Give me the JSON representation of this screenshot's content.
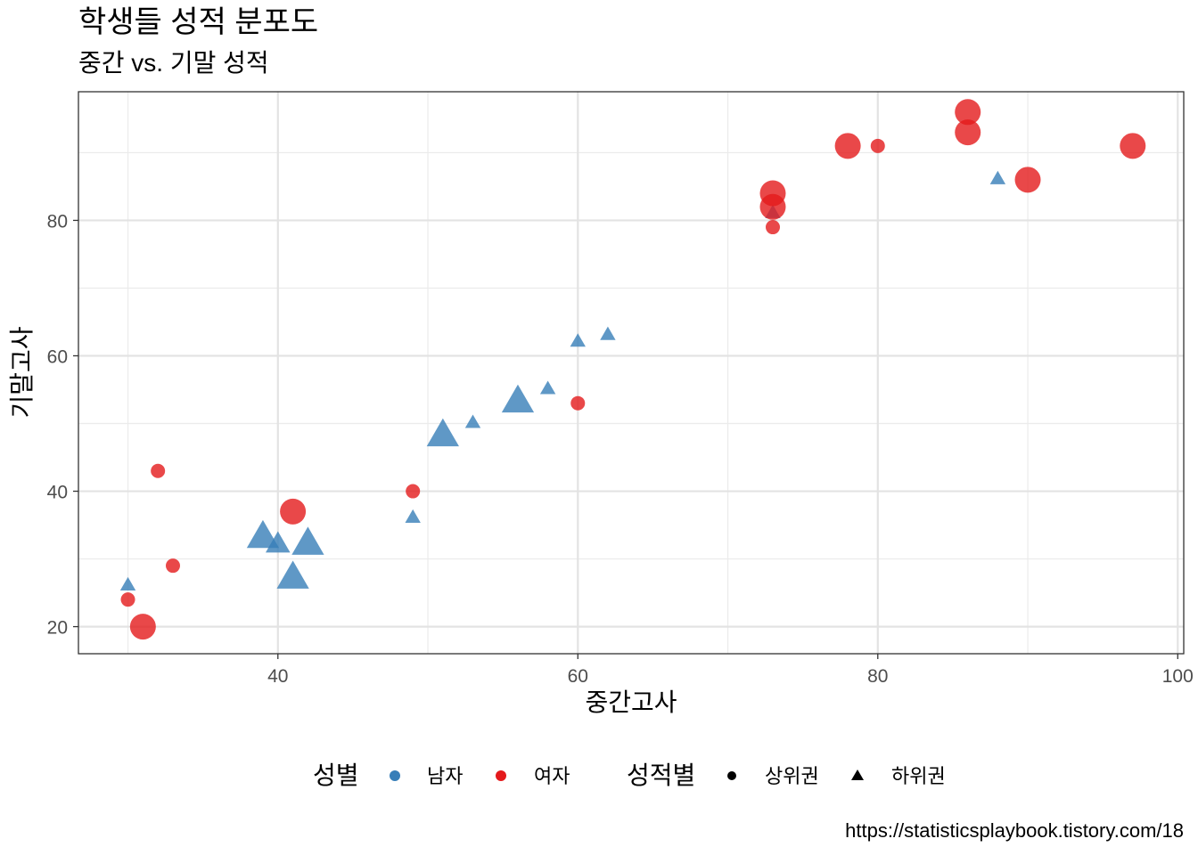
{
  "chart_data": {
    "type": "scatter",
    "title": "학생들 성적 분포도",
    "subtitle": "중간 vs. 기말 성적",
    "xlabel": "중간고사",
    "ylabel": "기말고사",
    "caption": "https://statisticsplaybook.tistory.com/18",
    "xlim": [
      26.7,
      100.4
    ],
    "ylim": [
      16,
      99
    ],
    "x_ticks": [
      40,
      60,
      80,
      100
    ],
    "x_tick_labels": [
      "40",
      "60",
      "80",
      "100"
    ],
    "y_ticks": [
      20,
      40,
      60,
      80
    ],
    "y_tick_labels": [
      "20",
      "40",
      "60",
      "80"
    ],
    "grid": true,
    "legend_position": "bottom",
    "colors": {
      "남자": "#377eb8",
      "여자": "#e41a1c"
    },
    "legend": {
      "color_title": "성별",
      "color_items": [
        "남자",
        "여자"
      ],
      "shape_title": "성적별",
      "shape_items": [
        "상위권",
        "하위권"
      ]
    },
    "points": [
      {
        "x": 30,
        "y": 26,
        "gender": "남자",
        "group": "하위권",
        "size": 1
      },
      {
        "x": 39,
        "y": 33,
        "gender": "남자",
        "group": "하위권",
        "size": 3
      },
      {
        "x": 40,
        "y": 32,
        "gender": "남자",
        "group": "하위권",
        "size": 2
      },
      {
        "x": 42,
        "y": 32,
        "gender": "남자",
        "group": "하위권",
        "size": 3
      },
      {
        "x": 41,
        "y": 27,
        "gender": "남자",
        "group": "하위권",
        "size": 3
      },
      {
        "x": 49,
        "y": 36,
        "gender": "남자",
        "group": "하위권",
        "size": 1
      },
      {
        "x": 51,
        "y": 48,
        "gender": "남자",
        "group": "하위권",
        "size": 3
      },
      {
        "x": 53,
        "y": 50,
        "gender": "남자",
        "group": "하위권",
        "size": 1
      },
      {
        "x": 56,
        "y": 53,
        "gender": "남자",
        "group": "하위권",
        "size": 3
      },
      {
        "x": 58,
        "y": 55,
        "gender": "남자",
        "group": "하위권",
        "size": 1
      },
      {
        "x": 60,
        "y": 62,
        "gender": "남자",
        "group": "하위권",
        "size": 1
      },
      {
        "x": 62,
        "y": 63,
        "gender": "남자",
        "group": "하위권",
        "size": 1
      },
      {
        "x": 73,
        "y": 81,
        "gender": "남자",
        "group": "하위권",
        "size": 1
      },
      {
        "x": 88,
        "y": 86,
        "gender": "남자",
        "group": "하위권",
        "size": 1
      },
      {
        "x": 30,
        "y": 24,
        "gender": "여자",
        "group": "상위권",
        "size": 1
      },
      {
        "x": 31,
        "y": 20,
        "gender": "여자",
        "group": "상위권",
        "size": 3
      },
      {
        "x": 32,
        "y": 43,
        "gender": "여자",
        "group": "상위권",
        "size": 1
      },
      {
        "x": 33,
        "y": 29,
        "gender": "여자",
        "group": "상위권",
        "size": 1
      },
      {
        "x": 41,
        "y": 37,
        "gender": "여자",
        "group": "상위권",
        "size": 3
      },
      {
        "x": 49,
        "y": 40,
        "gender": "여자",
        "group": "상위권",
        "size": 1
      },
      {
        "x": 60,
        "y": 53,
        "gender": "여자",
        "group": "상위권",
        "size": 1
      },
      {
        "x": 73,
        "y": 84,
        "gender": "여자",
        "group": "상위권",
        "size": 3
      },
      {
        "x": 73,
        "y": 82,
        "gender": "여자",
        "group": "상위권",
        "size": 3
      },
      {
        "x": 73,
        "y": 79,
        "gender": "여자",
        "group": "상위권",
        "size": 1
      },
      {
        "x": 78,
        "y": 91,
        "gender": "여자",
        "group": "상위권",
        "size": 3
      },
      {
        "x": 80,
        "y": 91,
        "gender": "여자",
        "group": "상위권",
        "size": 1
      },
      {
        "x": 86,
        "y": 96,
        "gender": "여자",
        "group": "상위권",
        "size": 3
      },
      {
        "x": 86,
        "y": 93,
        "gender": "여자",
        "group": "상위권",
        "size": 3
      },
      {
        "x": 90,
        "y": 86,
        "gender": "여자",
        "group": "상위권",
        "size": 3
      },
      {
        "x": 97,
        "y": 91,
        "gender": "여자",
        "group": "상위권",
        "size": 3
      }
    ]
  }
}
